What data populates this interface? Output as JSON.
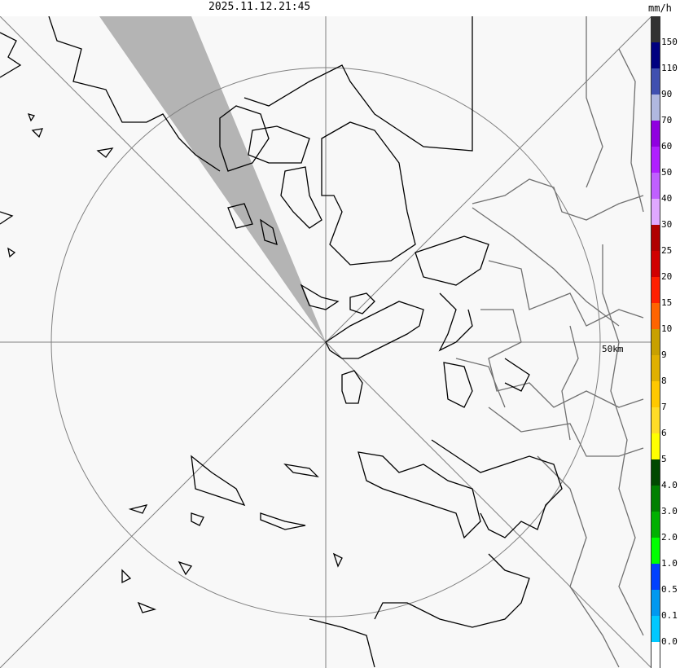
{
  "timestamp": "2025.11.12.21:45",
  "unit": "mm/h",
  "range_label": "50km",
  "legend": [
    {
      "label": "",
      "color": "#333333"
    },
    {
      "label": "150",
      "color": "#000080"
    },
    {
      "label": "110",
      "color": "#4050b0"
    },
    {
      "label": "90",
      "color": "#b0b8e0"
    },
    {
      "label": "70",
      "color": "#9000e0"
    },
    {
      "label": "60",
      "color": "#b020ff"
    },
    {
      "label": "50",
      "color": "#c060ff"
    },
    {
      "label": "40",
      "color": "#e0a8ff"
    },
    {
      "label": "30",
      "color": "#b00000"
    },
    {
      "label": "25",
      "color": "#d00000"
    },
    {
      "label": "20",
      "color": "#ff2000"
    },
    {
      "label": "15",
      "color": "#ff6400"
    },
    {
      "label": "10",
      "color": "#c8a000"
    },
    {
      "label": "9",
      "color": "#e0b000"
    },
    {
      "label": "8",
      "color": "#ffc800"
    },
    {
      "label": "7",
      "color": "#ffdc28"
    },
    {
      "label": "6",
      "color": "#ffff00"
    },
    {
      "label": "5",
      "color": "#004800"
    },
    {
      "label": "4.0",
      "color": "#008000"
    },
    {
      "label": "3.0",
      "color": "#00b000"
    },
    {
      "label": "2.0",
      "color": "#00ff00"
    },
    {
      "label": "1.0",
      "color": "#0040ff"
    },
    {
      "label": "0.5",
      "color": "#0098f0"
    },
    {
      "label": "0.1",
      "color": "#00c8ff"
    },
    {
      "label": "0.0",
      "color": "#ffffff"
    }
  ],
  "colors": {
    "blocked_sector": "#b4b4b4",
    "coastline": "#000000",
    "boundary": "#707070",
    "range_ring": "#808080"
  }
}
